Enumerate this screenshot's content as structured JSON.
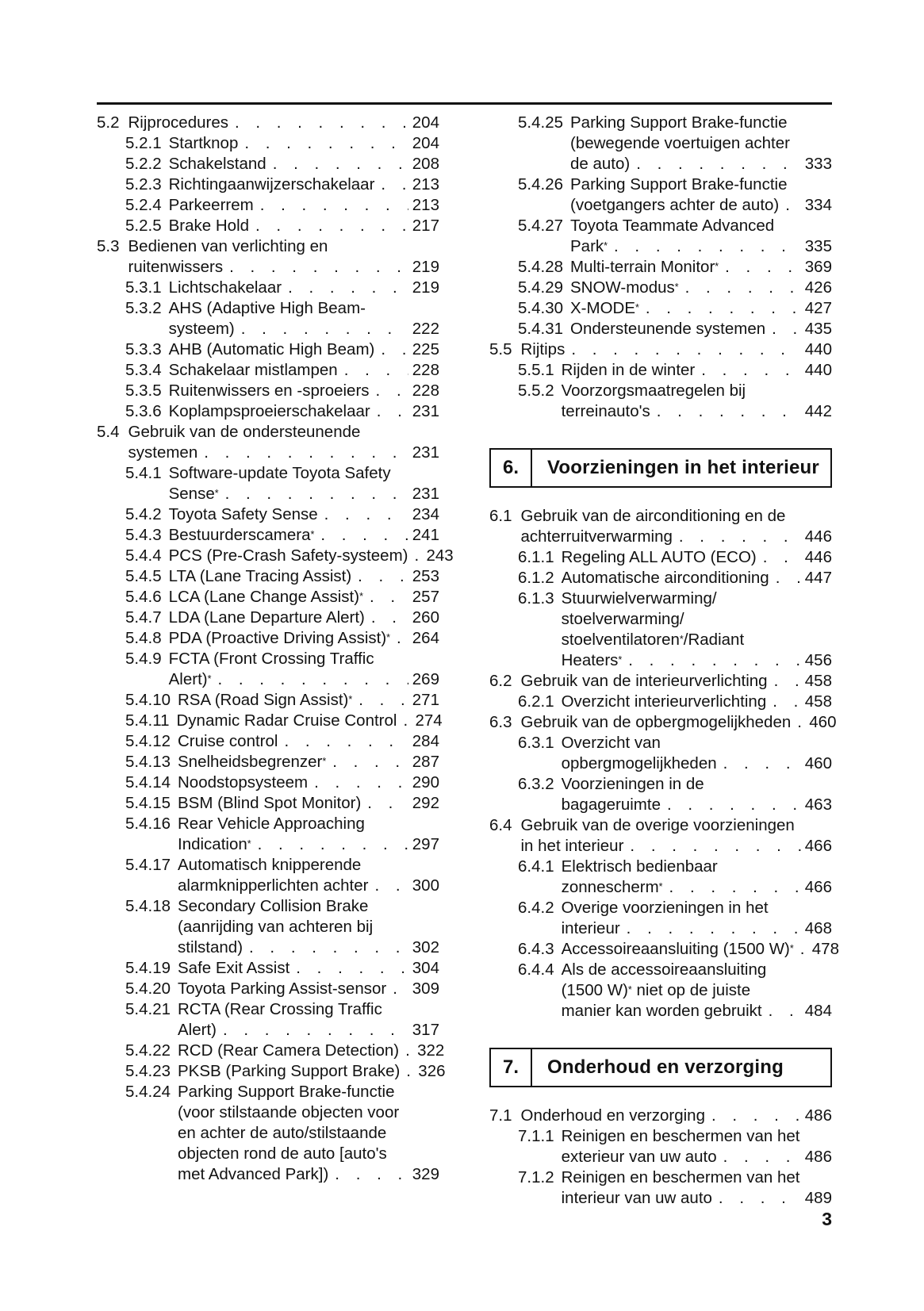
{
  "page": {
    "footer_page_number": "3"
  },
  "colors": {
    "ink": "#121212",
    "paper": "#ffffff"
  },
  "toc": {
    "left_column": [
      {
        "type": "entry",
        "level": 2,
        "num": "5.2",
        "lines": [
          "Rijprocedures"
        ],
        "page": "204"
      },
      {
        "type": "entry",
        "level": 3,
        "num": "5.2.1",
        "lines": [
          "Startknop"
        ],
        "page": "204"
      },
      {
        "type": "entry",
        "level": 3,
        "num": "5.2.2",
        "lines": [
          "Schakelstand"
        ],
        "page": "208"
      },
      {
        "type": "entry",
        "level": 3,
        "num": "5.2.3",
        "lines": [
          "Richtingaanwijzerschakelaar"
        ],
        "page": "213"
      },
      {
        "type": "entry",
        "level": 3,
        "num": "5.2.4",
        "lines": [
          "Parkeerrem"
        ],
        "page": "213"
      },
      {
        "type": "entry",
        "level": 3,
        "num": "5.2.5",
        "lines": [
          "Brake Hold"
        ],
        "page": "217"
      },
      {
        "type": "entry",
        "level": 2,
        "num": "5.3",
        "lines": [
          "Bedienen van verlichting en",
          "ruitenwissers"
        ],
        "page": "219"
      },
      {
        "type": "entry",
        "level": 3,
        "num": "5.3.1",
        "lines": [
          "Lichtschakelaar"
        ],
        "page": "219"
      },
      {
        "type": "entry",
        "level": 3,
        "num": "5.3.2",
        "lines": [
          "AHS (Adaptive High Beam-",
          "systeem)"
        ],
        "page": "222"
      },
      {
        "type": "entry",
        "level": 3,
        "num": "5.3.3",
        "lines": [
          "AHB (Automatic High Beam)"
        ],
        "page": "225"
      },
      {
        "type": "entry",
        "level": 3,
        "num": "5.3.4",
        "lines": [
          "Schakelaar mistlampen"
        ],
        "page": "228"
      },
      {
        "type": "entry",
        "level": 3,
        "num": "5.3.5",
        "lines": [
          "Ruitenwissers en -sproeiers"
        ],
        "page": "228"
      },
      {
        "type": "entry",
        "level": 3,
        "num": "5.3.6",
        "lines": [
          "Koplampsproeierschakelaar"
        ],
        "page": "231"
      },
      {
        "type": "entry",
        "level": 2,
        "num": "5.4",
        "lines": [
          "Gebruik van de ondersteunende",
          "systemen"
        ],
        "page": "231"
      },
      {
        "type": "entry",
        "level": 3,
        "num": "5.4.1",
        "lines": [
          "Software-update Toyota Safety",
          "Sense*"
        ],
        "page": "231"
      },
      {
        "type": "entry",
        "level": 3,
        "num": "5.4.2",
        "lines": [
          "Toyota Safety Sense"
        ],
        "page": "234"
      },
      {
        "type": "entry",
        "level": 3,
        "num": "5.4.3",
        "lines": [
          "Bestuurderscamera*"
        ],
        "page": "241"
      },
      {
        "type": "entry",
        "level": 3,
        "num": "5.4.4",
        "lines": [
          "PCS (Pre-Crash Safety-systeem)"
        ],
        "page": "243"
      },
      {
        "type": "entry",
        "level": 3,
        "num": "5.4.5",
        "lines": [
          "LTA (Lane Tracing Assist)"
        ],
        "page": "253"
      },
      {
        "type": "entry",
        "level": 3,
        "num": "5.4.6",
        "lines": [
          "LCA (Lane Change Assist)*"
        ],
        "page": "257"
      },
      {
        "type": "entry",
        "level": 3,
        "num": "5.4.7",
        "lines": [
          "LDA (Lane Departure Alert)"
        ],
        "page": "260"
      },
      {
        "type": "entry",
        "level": 3,
        "num": "5.4.8",
        "lines": [
          "PDA (Proactive Driving Assist)*"
        ],
        "page": "264"
      },
      {
        "type": "entry",
        "level": 3,
        "num": "5.4.9",
        "lines": [
          "FCTA (Front Crossing Traffic",
          "Alert)*"
        ],
        "page": "269"
      },
      {
        "type": "entry",
        "level": 3,
        "num": "5.4.10",
        "lines": [
          "RSA (Road Sign Assist)*"
        ],
        "page": "271"
      },
      {
        "type": "entry",
        "level": 3,
        "num": "5.4.11",
        "lines": [
          "Dynamic Radar Cruise Control"
        ],
        "page": "274"
      },
      {
        "type": "entry",
        "level": 3,
        "num": "5.4.12",
        "lines": [
          "Cruise control"
        ],
        "page": "284"
      },
      {
        "type": "entry",
        "level": 3,
        "num": "5.4.13",
        "lines": [
          "Snelheidsbegrenzer*"
        ],
        "page": "287"
      },
      {
        "type": "entry",
        "level": 3,
        "num": "5.4.14",
        "lines": [
          "Noodstopsysteem"
        ],
        "page": "290"
      },
      {
        "type": "entry",
        "level": 3,
        "num": "5.4.15",
        "lines": [
          "BSM (Blind Spot Monitor)"
        ],
        "page": "292"
      },
      {
        "type": "entry",
        "level": 3,
        "num": "5.4.16",
        "lines": [
          "Rear Vehicle Approaching",
          "Indication*"
        ],
        "page": "297"
      },
      {
        "type": "entry",
        "level": 3,
        "num": "5.4.17",
        "lines": [
          "Automatisch knipperende",
          "alarmknipperlichten achter"
        ],
        "page": "300"
      },
      {
        "type": "entry",
        "level": 3,
        "num": "5.4.18",
        "lines": [
          "Secondary Collision Brake",
          "(aanrijding van achteren bij",
          "stilstand)"
        ],
        "page": "302"
      },
      {
        "type": "entry",
        "level": 3,
        "num": "5.4.19",
        "lines": [
          "Safe Exit Assist"
        ],
        "page": "304"
      },
      {
        "type": "entry",
        "level": 3,
        "num": "5.4.20",
        "lines": [
          "Toyota Parking Assist-sensor"
        ],
        "page": "309"
      },
      {
        "type": "entry",
        "level": 3,
        "num": "5.4.21",
        "lines": [
          "RCTA (Rear Crossing Traffic",
          "Alert)"
        ],
        "page": "317"
      },
      {
        "type": "entry",
        "level": 3,
        "num": "5.4.22",
        "lines": [
          "RCD (Rear Camera Detection)"
        ],
        "page": "322"
      },
      {
        "type": "entry",
        "level": 3,
        "num": "5.4.23",
        "lines": [
          "PKSB (Parking Support Brake)"
        ],
        "page": "326"
      },
      {
        "type": "entry",
        "level": 3,
        "num": "5.4.24",
        "lines": [
          "Parking Support Brake-functie",
          "(voor stilstaande objecten voor",
          "en achter de auto/stilstaande",
          "objecten rond de auto [auto's",
          "met Advanced Park])"
        ],
        "page": "329"
      }
    ],
    "right_column": [
      {
        "type": "entry",
        "level": 3,
        "num": "5.4.25",
        "lines": [
          "Parking Support Brake-functie",
          "(bewegende voertuigen achter",
          "de auto)"
        ],
        "page": "333"
      },
      {
        "type": "entry",
        "level": 3,
        "num": "5.4.26",
        "lines": [
          "Parking Support Brake-functie",
          "(voetgangers achter de auto)"
        ],
        "page": "334"
      },
      {
        "type": "entry",
        "level": 3,
        "num": "5.4.27",
        "lines": [
          "Toyota Teammate Advanced",
          "Park*"
        ],
        "page": "335"
      },
      {
        "type": "entry",
        "level": 3,
        "num": "5.4.28",
        "lines": [
          "Multi-terrain Monitor*"
        ],
        "page": "369"
      },
      {
        "type": "entry",
        "level": 3,
        "num": "5.4.29",
        "lines": [
          "SNOW-modus*"
        ],
        "page": "426"
      },
      {
        "type": "entry",
        "level": 3,
        "num": "5.4.30",
        "lines": [
          "X-MODE*"
        ],
        "page": "427"
      },
      {
        "type": "entry",
        "level": 3,
        "num": "5.4.31",
        "lines": [
          "Ondersteunende systemen"
        ],
        "page": "435"
      },
      {
        "type": "entry",
        "level": 2,
        "num": "5.5",
        "lines": [
          "Rijtips"
        ],
        "page": "440"
      },
      {
        "type": "entry",
        "level": 3,
        "num": "5.5.1",
        "lines": [
          "Rijden in de winter"
        ],
        "page": "440"
      },
      {
        "type": "entry",
        "level": 3,
        "num": "5.5.2",
        "lines": [
          "Voorzorgsmaatregelen bij",
          "terreinauto's"
        ],
        "page": "442"
      },
      {
        "type": "chapter",
        "num": "6.",
        "title": "Voorzieningen in het interieur"
      },
      {
        "type": "entry",
        "level": 2,
        "num": "6.1",
        "lines": [
          "Gebruik van de airconditioning en de",
          "achterruitverwarming"
        ],
        "page": "446"
      },
      {
        "type": "entry",
        "level": 3,
        "num": "6.1.1",
        "lines": [
          "Regeling ALL AUTO (ECO)"
        ],
        "page": "446"
      },
      {
        "type": "entry",
        "level": 3,
        "num": "6.1.2",
        "lines": [
          "Automatische airconditioning"
        ],
        "page": "447"
      },
      {
        "type": "entry",
        "level": 3,
        "num": "6.1.3",
        "lines": [
          "Stuurwielverwarming/",
          "stoelverwarming/",
          "stoelventilatoren*/Radiant",
          "Heaters*"
        ],
        "page": "456"
      },
      {
        "type": "entry",
        "level": 2,
        "num": "6.2",
        "lines": [
          "Gebruik van de interieurverlichting"
        ],
        "page": "458"
      },
      {
        "type": "entry",
        "level": 3,
        "num": "6.2.1",
        "lines": [
          "Overzicht interieurverlichting"
        ],
        "page": "458"
      },
      {
        "type": "entry",
        "level": 2,
        "num": "6.3",
        "lines": [
          "Gebruik van de opbergmogelijkheden"
        ],
        "page": "460"
      },
      {
        "type": "entry",
        "level": 3,
        "num": "6.3.1",
        "lines": [
          "Overzicht van",
          "opbergmogelijkheden"
        ],
        "page": "460"
      },
      {
        "type": "entry",
        "level": 3,
        "num": "6.3.2",
        "lines": [
          "Voorzieningen in de",
          "bagageruimte"
        ],
        "page": "463"
      },
      {
        "type": "entry",
        "level": 2,
        "num": "6.4",
        "lines": [
          "Gebruik van de overige voorzieningen",
          "in het interieur"
        ],
        "page": "466"
      },
      {
        "type": "entry",
        "level": 3,
        "num": "6.4.1",
        "lines": [
          "Elektrisch bedienbaar",
          "zonnescherm*"
        ],
        "page": "466"
      },
      {
        "type": "entry",
        "level": 3,
        "num": "6.4.2",
        "lines": [
          "Overige voorzieningen in het",
          "interieur"
        ],
        "page": "468"
      },
      {
        "type": "entry",
        "level": 3,
        "num": "6.4.3",
        "lines": [
          "Accessoireaansluiting (1500 W)*"
        ],
        "page": "478"
      },
      {
        "type": "entry",
        "level": 3,
        "num": "6.4.4",
        "lines": [
          "Als de accessoireaansluiting",
          "(1500 W)* niet op de juiste",
          "manier kan worden gebruikt"
        ],
        "page": "484"
      },
      {
        "type": "chapter",
        "num": "7.",
        "title": "Onderhoud en verzorging"
      },
      {
        "type": "entry",
        "level": 2,
        "num": "7.1",
        "lines": [
          "Onderhoud en verzorging"
        ],
        "page": "486"
      },
      {
        "type": "entry",
        "level": 3,
        "num": "7.1.1",
        "lines": [
          "Reinigen en beschermen van het",
          "exterieur van uw auto"
        ],
        "page": "486"
      },
      {
        "type": "entry",
        "level": 3,
        "num": "7.1.2",
        "lines": [
          "Reinigen en beschermen van het",
          "interieur van uw auto"
        ],
        "page": "489"
      }
    ]
  }
}
